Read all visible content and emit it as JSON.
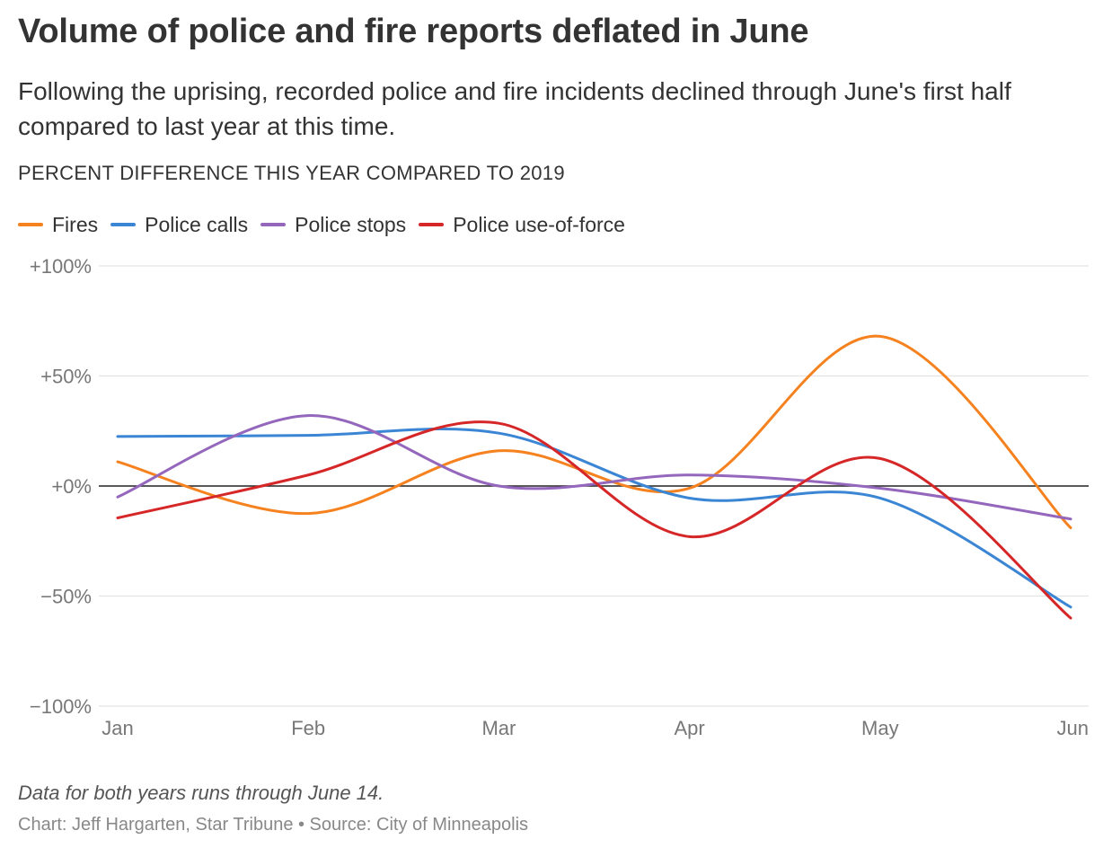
{
  "header": {
    "title": "Volume of police and fire reports deflated in June",
    "subtitle": "Following the uprising, recorded police and fire incidents declined through June's first half compared to last year at this time."
  },
  "footer": {
    "note": "Data for both years runs through June 14.",
    "credit": "Chart: Jeff Hargarten, Star Tribune • Source: City of Minneapolis"
  },
  "chart_data": {
    "type": "line",
    "title": "Volume of police and fire reports deflated in June",
    "ylabel": "PERCENT DIFFERENCE THIS YEAR COMPARED TO 2019",
    "xlabel": "",
    "categories": [
      "Jan",
      "Feb",
      "Mar",
      "Apr",
      "May",
      "Jun"
    ],
    "ylim": [
      -100,
      100
    ],
    "yticks": [
      100,
      50,
      0,
      -50,
      -100
    ],
    "ytick_labels": [
      "+100%",
      "+50%",
      "+0%",
      "−50%",
      "−100%"
    ],
    "grid": true,
    "zero_line": true,
    "legend": "top-left",
    "curve": "smooth",
    "series": [
      {
        "name": "Fires",
        "color": "#f5821f",
        "values": [
          11,
          -12.5,
          16,
          -1,
          68,
          -19
        ]
      },
      {
        "name": "Police calls",
        "color": "#3a86d4",
        "values": [
          22.5,
          23,
          24,
          -5.5,
          -5.5,
          -55
        ]
      },
      {
        "name": "Police stops",
        "color": "#9467bd",
        "values": [
          -5,
          32,
          0,
          5,
          -1,
          -15
        ]
      },
      {
        "name": "Police use-of-force",
        "color": "#d62728",
        "values": [
          -14.5,
          5,
          28.5,
          -23,
          12.5,
          -60
        ]
      }
    ]
  }
}
